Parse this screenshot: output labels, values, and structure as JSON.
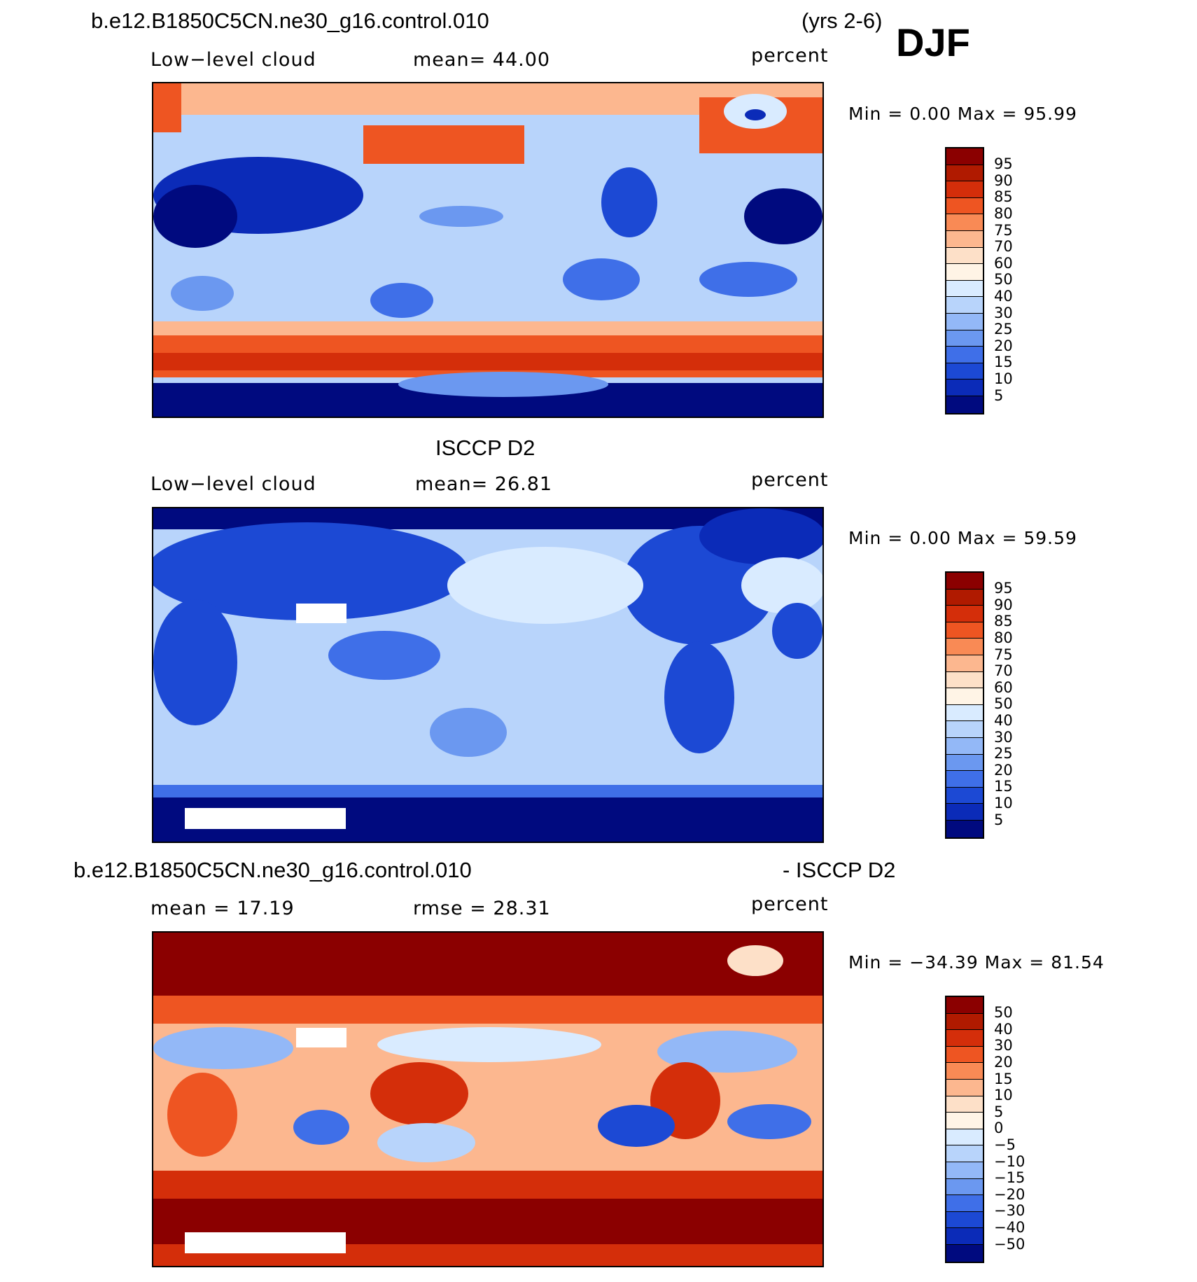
{
  "colors": {
    "seq": [
      "#8b0000",
      "#b01a00",
      "#d42e0a",
      "#ee5522",
      "#f98a55",
      "#fcb78f",
      "#fde0c8",
      "#fff4e6",
      "#d9ebff",
      "#b8d4fb",
      "#93b8f7",
      "#6b98f0",
      "#3f6fe8",
      "#1c49d4",
      "#0b2bb8",
      "#000a7f"
    ],
    "diff": [
      "#8b0000",
      "#b01a00",
      "#d42e0a",
      "#ee5522",
      "#f98a55",
      "#fcb78f",
      "#fde0c8",
      "#fff4e6",
      "#d9ebff",
      "#b8d4fb",
      "#93b8f7",
      "#6b98f0",
      "#3f6fe8",
      "#1c49d4",
      "#0b2bb8",
      "#000a7f"
    ]
  },
  "header": {
    "case_name": "b.e12.B1850C5CN.ne30_g16.control.010",
    "years": "(yrs 2-6)",
    "season": "DJF"
  },
  "panel1": {
    "left": "Low−level cloud",
    "center": "mean=   44.00",
    "units": "percent",
    "minmax": "Min =      0.00 Max =    95.99",
    "ticks": [
      "95",
      "90",
      "85",
      "80",
      "75",
      "70",
      "60",
      "50",
      "40",
      "30",
      "25",
      "20",
      "15",
      "10",
      "5"
    ]
  },
  "panel2": {
    "title": "ISCCP D2",
    "left": "Low−level cloud",
    "center": "mean=   26.81",
    "units": "percent",
    "minmax": "Min =      0.00 Max =    59.59",
    "ticks": [
      "95",
      "90",
      "85",
      "80",
      "75",
      "70",
      "60",
      "50",
      "40",
      "30",
      "25",
      "20",
      "15",
      "10",
      "5"
    ]
  },
  "panel3": {
    "title_left": "b.e12.B1850C5CN.ne30_g16.control.010",
    "title_right": "- ISCCP D2",
    "left": "mean =    17.19",
    "center": "rmse =    28.31",
    "units": "percent",
    "minmax": "Min = −34.39 Max =    81.54",
    "ticks": [
      "50",
      "40",
      "30",
      "20",
      "15",
      "10",
      "5",
      "0",
      "−5",
      "−10",
      "−15",
      "−20",
      "−30",
      "−40",
      "−50"
    ]
  }
}
